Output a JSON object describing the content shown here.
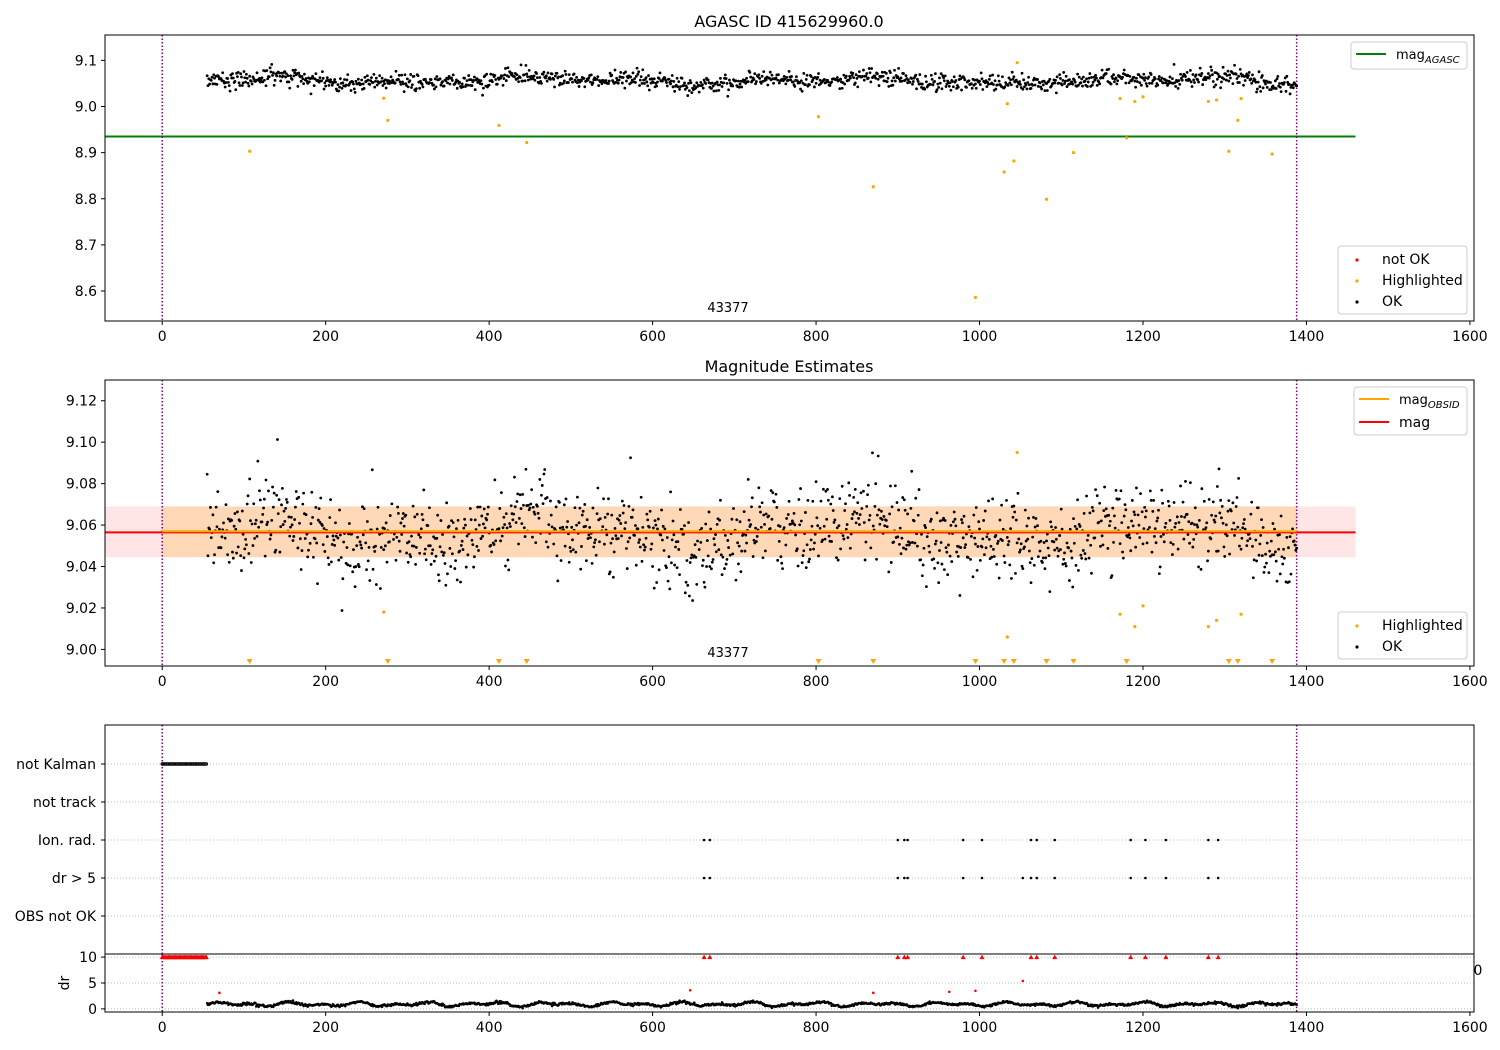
{
  "chart_data": [
    {
      "type": "scatter",
      "title": "AGASC ID 415629960.0",
      "xlim": [
        -70,
        1605
      ],
      "ylim": [
        8.535,
        9.155
      ],
      "xticks": [
        0,
        200,
        400,
        600,
        800,
        1000,
        1200,
        1400,
        1600
      ],
      "yticks": [
        8.6,
        8.7,
        8.8,
        8.9,
        9.0,
        9.1
      ],
      "obsid_label": "43377",
      "obsid_label_x": 695,
      "obsid_bounds": [
        0,
        1388
      ],
      "mag_agasc": 8.935,
      "agasc_line_x": [
        -70,
        1460
      ],
      "ok_band": {
        "x": [
          55,
          1388
        ],
        "center": 9.056,
        "amp": 0.012,
        "noise": 0.009
      },
      "legend_lines": [
        {
          "name": "mag",
          "sub": "AGASC",
          "color": "#008000"
        }
      ],
      "legend_markers": [
        {
          "name": "not OK",
          "color": "#ff0000"
        },
        {
          "name": "Highlighted",
          "color": "#ffa500"
        },
        {
          "name": "OK",
          "color": "#000000"
        }
      ],
      "highlighted": {
        "x": [
          107,
          271,
          276,
          412,
          446,
          803,
          870,
          995,
          1030,
          1034,
          1042,
          1046,
          1082,
          1115,
          1172,
          1180,
          1190,
          1200,
          1280,
          1290,
          1305,
          1316,
          1320,
          1358
        ],
        "y": [
          8.903,
          9.018,
          8.97,
          8.959,
          8.922,
          8.978,
          8.826,
          8.586,
          8.858,
          9.006,
          8.882,
          9.095,
          8.799,
          8.9,
          9.017,
          8.932,
          9.011,
          9.021,
          9.011,
          9.014,
          8.903,
          8.97,
          9.017,
          8.897
        ]
      }
    },
    {
      "type": "scatter",
      "title": "Magnitude Estimates",
      "xlim": [
        -70,
        1605
      ],
      "ylim": [
        8.992,
        9.13
      ],
      "xticks": [
        0,
        200,
        400,
        600,
        800,
        1000,
        1200,
        1400,
        1600
      ],
      "yticks": [
        9.0,
        9.02,
        9.04,
        9.06,
        9.08,
        9.1,
        9.12
      ],
      "obsid_label": "43377",
      "obsid_label_x": 695,
      "obsid_bounds": [
        0,
        1388
      ],
      "mag": 9.0565,
      "mag_band": [
        9.0445,
        9.069
      ],
      "mag_line_x": [
        -70,
        1460
      ],
      "mag_obsid": 9.057,
      "mag_obsid_band": [
        9.0445,
        9.069
      ],
      "mag_obsid_x": [
        0,
        1388
      ],
      "ok_band": {
        "x": [
          55,
          1388
        ],
        "center": 9.056,
        "amp": 0.012,
        "noise": 0.01
      },
      "legend_lines": [
        {
          "name": "mag",
          "sub": "OBSID",
          "color": "#ffa500"
        },
        {
          "name": "mag",
          "sub": "",
          "color": "#ff0000"
        }
      ],
      "legend_markers": [
        {
          "name": "Highlighted",
          "color": "#ffa500"
        },
        {
          "name": "OK",
          "color": "#000000"
        }
      ],
      "highlighted": {
        "x": [
          271,
          1034,
          1046,
          1172,
          1190,
          1200,
          1280,
          1290,
          1320
        ],
        "y": [
          9.018,
          9.006,
          9.095,
          9.017,
          9.011,
          9.021,
          9.011,
          9.014,
          9.017
        ]
      },
      "below_range_x": [
        107,
        276,
        412,
        446,
        803,
        870,
        995,
        1030,
        1042,
        1082,
        1115,
        1180,
        1305,
        1316,
        1358
      ]
    },
    {
      "type": "scatter",
      "title": "",
      "xlim": [
        -70,
        1605
      ],
      "categories": [
        "not Kalman",
        "not track",
        "Ion. rad.",
        "dr > 5",
        "OBS not OK"
      ],
      "obsid_bounds": [
        0,
        1388
      ],
      "not_kalman_x": [
        0,
        55
      ],
      "flag_x": [
        663,
        670,
        900,
        908,
        912,
        980,
        1003,
        1063,
        1070,
        1092,
        1185,
        1203,
        1228,
        1280,
        1292
      ],
      "dr_gt5_extra_x": [
        1053
      ]
    },
    {
      "type": "scatter",
      "title": "",
      "ylabel": "dr",
      "xlim": [
        -70,
        1605
      ],
      "ylim": [
        -0.6,
        10.6
      ],
      "xticks": [
        0,
        200,
        400,
        600,
        800,
        1000,
        1200,
        1400,
        1600
      ],
      "yticks": [
        0,
        5,
        10
      ],
      "obsid_bounds": [
        0,
        1388
      ],
      "clipped_value": 10,
      "clipped_x_range": [
        0,
        55
      ],
      "clipped_x": [
        663,
        670,
        900,
        908,
        912,
        980,
        1003,
        1063,
        1070,
        1092,
        1185,
        1203,
        1228,
        1280,
        1292
      ],
      "outliers": {
        "x": [
          70,
          646,
          870,
          963,
          995,
          1053
        ],
        "y": [
          3.1,
          3.6,
          3.1,
          3.3,
          3.5,
          5.4
        ]
      },
      "ok_band": {
        "x": [
          55,
          1388
        ],
        "center": 0.9,
        "amp": 0.5
      }
    }
  ],
  "stray_label": "0"
}
